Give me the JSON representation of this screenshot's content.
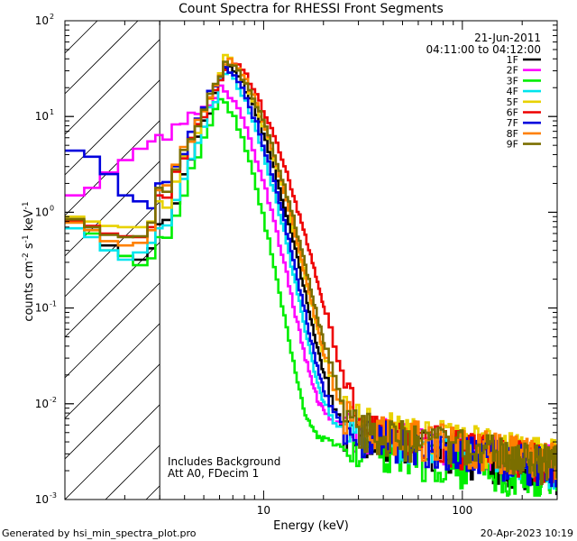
{
  "chart_data": {
    "type": "line",
    "title": "Count Spectra for RHESSI Front Segments",
    "xlabel": "Energy (keV)",
    "ylabel_parts": [
      "counts cm",
      "-2",
      " s",
      "-1",
      " keV",
      "-1"
    ],
    "xscale": "log",
    "yscale": "log",
    "xlim": [
      1.0,
      300
    ],
    "ylim": [
      0.001,
      100
    ],
    "x_ticks": [
      {
        "value": 10,
        "label": "10"
      },
      {
        "value": 100,
        "label": "100"
      }
    ],
    "y_ticks": [
      {
        "value": 0.001,
        "base": "10",
        "exp": "-3"
      },
      {
        "value": 0.01,
        "base": "10",
        "exp": "-2"
      },
      {
        "value": 0.1,
        "base": "10",
        "exp": "-1"
      },
      {
        "value": 1,
        "base": "10",
        "exp": "0"
      },
      {
        "value": 10,
        "base": "10",
        "exp": "1"
      },
      {
        "value": 100,
        "base": "10",
        "exp": "2"
      }
    ],
    "shaded_region": {
      "x_min": 1.0,
      "x_max": 3.0,
      "style": "hatched"
    },
    "date": "21-Jun-2011",
    "time_range": "04:11:00 to 04:12:00",
    "annotations": [
      "Includes Background",
      "Att A0, FDecim 1"
    ],
    "legend_position": "top-right",
    "series": [
      {
        "name": "1F",
        "color": "#000000",
        "low_e": [
          0.8,
          0.7,
          0.45,
          0.35,
          0.32,
          0.42,
          0.75
        ],
        "peak": 35,
        "peak_e": 6.3,
        "width": 0.32,
        "plateau": 0.0045
      },
      {
        "name": "2F",
        "color": "#ff00ff",
        "low_e": [
          1.5,
          1.8,
          2.6,
          3.5,
          4.6,
          5.5,
          6.4
        ],
        "peak": 19,
        "peak_e": 6.0,
        "width": 0.3,
        "plateau": 0.0055
      },
      {
        "name": "3F",
        "color": "#00ee00",
        "low_e": [
          0.82,
          0.6,
          0.4,
          0.35,
          0.28,
          0.33,
          0.55
        ],
        "peak": 16,
        "peak_e": 5.8,
        "width": 0.27,
        "plateau": 0.0035
      },
      {
        "name": "4F",
        "color": "#00e5ee",
        "low_e": [
          0.68,
          0.55,
          0.4,
          0.32,
          0.38,
          0.48,
          0.68
        ],
        "peak": 30,
        "peak_e": 6.2,
        "width": 0.3,
        "plateau": 0.005
      },
      {
        "name": "5F",
        "color": "#e8d200",
        "low_e": [
          0.9,
          0.8,
          0.72,
          0.7,
          0.7,
          0.8,
          1.3
        ],
        "peak": 40,
        "peak_e": 6.3,
        "width": 0.33,
        "plateau": 0.0065
      },
      {
        "name": "6F",
        "color": "#ee0000",
        "low_e": [
          0.8,
          0.72,
          0.6,
          0.56,
          0.55,
          0.7,
          1.5
        ],
        "peak": 38,
        "peak_e": 6.6,
        "width": 0.36,
        "plateau": 0.0055
      },
      {
        "name": "7F",
        "color": "#0000dd",
        "low_e": [
          4.4,
          3.8,
          2.5,
          1.5,
          1.3,
          1.1,
          2.0
        ],
        "peak": 33,
        "peak_e": 6.2,
        "width": 0.31,
        "plateau": 0.005
      },
      {
        "name": "8F",
        "color": "#ff8000",
        "low_e": [
          0.78,
          0.65,
          0.5,
          0.45,
          0.48,
          0.65,
          1.7
        ],
        "peak": 42,
        "peak_e": 6.3,
        "width": 0.33,
        "plateau": 0.006
      },
      {
        "name": "9F",
        "color": "#7a6e00",
        "low_e": [
          0.85,
          0.7,
          0.58,
          0.55,
          0.56,
          0.78,
          1.8
        ],
        "peak": 37,
        "peak_e": 6.4,
        "width": 0.34,
        "plateau": 0.0055
      }
    ]
  },
  "footer": {
    "generated_by": "Generated by hsi_min_spectra_plot.pro",
    "timestamp": "20-Apr-2023 10:19"
  }
}
